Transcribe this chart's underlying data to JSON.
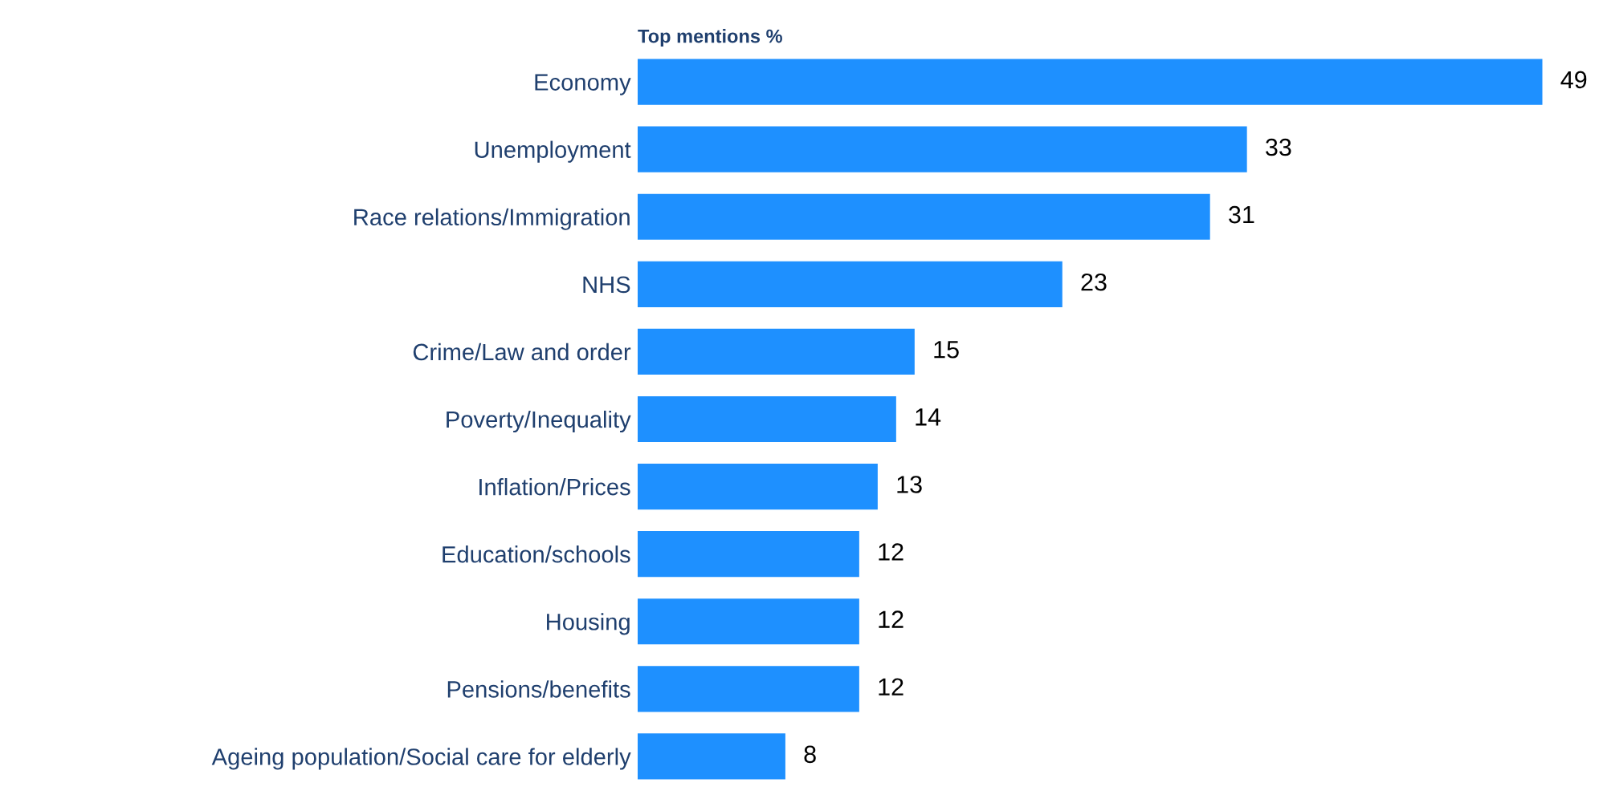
{
  "chart_data": {
    "type": "bar",
    "orientation": "horizontal",
    "title": "Top mentions %",
    "relative": false,
    "data_labels": true,
    "grid": false,
    "legend": false,
    "categories": [
      "Economy",
      "Unemployment",
      "Race relations/Immigration",
      "NHS",
      "Crime/Law and order",
      "Poverty/Inequality",
      "Inflation/Prices",
      "Education/schools",
      "Housing",
      "Pensions/benefits",
      "Ageing population/Social care for elderly"
    ],
    "values": [
      49,
      33,
      31,
      23,
      15,
      14,
      13,
      12,
      12,
      12,
      8
    ],
    "color": "#1e90ff"
  }
}
